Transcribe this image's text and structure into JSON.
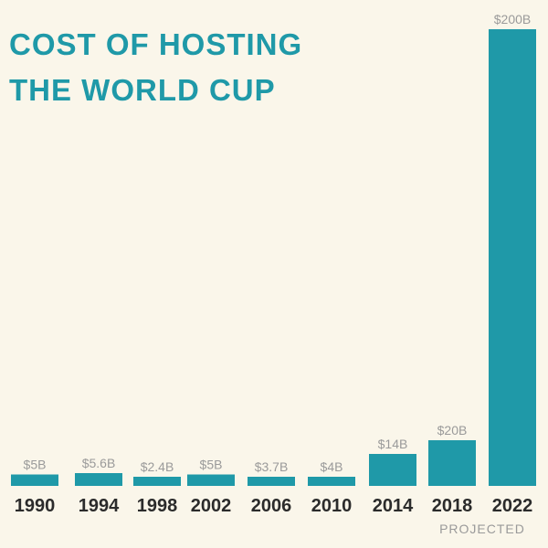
{
  "colors": {
    "background": "#faf6ea",
    "accent": "#1f99a8",
    "bar_label": "#9a9a9a",
    "tick_label": "#2b2b2b"
  },
  "title": {
    "line1": "COST OF HOSTING",
    "line2": "THE WORLD CUP"
  },
  "chart_data": {
    "type": "bar",
    "title": "COST OF HOSTING THE WORLD CUP",
    "xlabel": "",
    "ylabel": "",
    "grid": false,
    "categories": [
      "1990",
      "1994",
      "1998",
      "2002",
      "2006",
      "2010",
      "2014",
      "2018",
      "2022"
    ],
    "values": [
      5,
      5.6,
      2.4,
      5,
      3.7,
      4,
      14,
      20,
      200
    ],
    "value_labels": [
      "$5B",
      "$5.6B",
      "$2.4B",
      "$5B",
      "$3.7B",
      "$4B",
      "$14B",
      "$20B",
      "$200B"
    ],
    "unit": "billion USD",
    "ylim": [
      0,
      200
    ],
    "annotations": [
      {
        "category": "2022",
        "text": "PROJECTED"
      }
    ]
  }
}
